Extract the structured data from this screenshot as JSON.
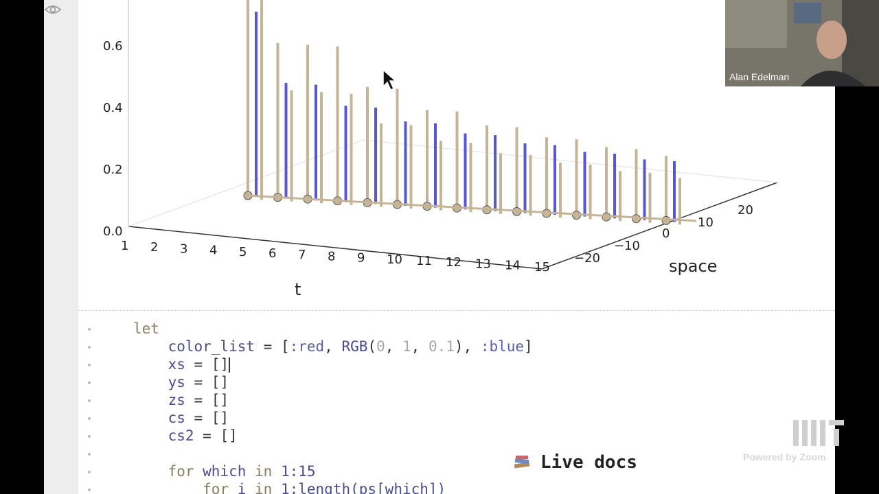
{
  "video": {
    "participant_name": "Alan Edelman"
  },
  "branding": {
    "zoom_text": "Powered by Zoom",
    "logo_text": "MIT"
  },
  "plot": {
    "z_ticks": [
      "0.0",
      "0.2",
      "0.4",
      "0.6"
    ],
    "t_ticks": [
      "1",
      "2",
      "3",
      "4",
      "5",
      "6",
      "7",
      "8",
      "9",
      "10",
      "11",
      "12",
      "13",
      "14",
      "15"
    ],
    "space_ticks": [
      "−20",
      "−10",
      "0",
      "10",
      "20"
    ],
    "t_label": "t",
    "space_label": "space"
  },
  "chart_data": {
    "type": "3d-stem",
    "xlabel": "t",
    "ylabel": "space",
    "zlim": [
      0,
      0.7
    ],
    "series": [
      {
        "color": "#c5b496",
        "values": [
          1.0,
          0.5,
          0.5,
          0.5,
          0.375,
          0.375,
          0.3125,
          0.3125,
          0.2734,
          0.2734,
          0.2461,
          0.2461,
          0.2256,
          0.2256,
          0.2095
        ]
      },
      {
        "color": "#5555dd",
        "values": [
          0.6,
          0.375,
          0.375,
          0.3125,
          0.3125,
          0.2734,
          0.2734,
          0.2461,
          0.2461,
          0.2256,
          0.2256,
          0.2095,
          0.2095,
          0.1964,
          0.1964
        ]
      }
    ]
  },
  "code": {
    "lines": [
      [
        {
          "c": "kw",
          "t": "let"
        }
      ],
      [
        {
          "c": "",
          "t": "    color_list "
        },
        {
          "c": "punct",
          "t": "= ["
        },
        {
          "c": "sym",
          "t": ":red"
        },
        {
          "c": "punct",
          "t": ", "
        },
        {
          "c": "",
          "t": "RGB"
        },
        {
          "c": "punct",
          "t": "("
        },
        {
          "c": "num",
          "t": "0"
        },
        {
          "c": "punct",
          "t": ", "
        },
        {
          "c": "num",
          "t": "1"
        },
        {
          "c": "punct",
          "t": ", "
        },
        {
          "c": "num",
          "t": "0.1"
        },
        {
          "c": "punct",
          "t": "), "
        },
        {
          "c": "sym",
          "t": ":blue"
        },
        {
          "c": "punct",
          "t": "]"
        }
      ],
      [
        {
          "c": "",
          "t": "    xs "
        },
        {
          "c": "punct",
          "t": "= []"
        },
        {
          "c": "cursor",
          "t": ""
        }
      ],
      [
        {
          "c": "",
          "t": "    ys "
        },
        {
          "c": "punct",
          "t": "= []"
        }
      ],
      [
        {
          "c": "",
          "t": "    zs "
        },
        {
          "c": "punct",
          "t": "= []"
        }
      ],
      [
        {
          "c": "",
          "t": "    cs "
        },
        {
          "c": "punct",
          "t": "= []"
        }
      ],
      [
        {
          "c": "",
          "t": "    cs2 "
        },
        {
          "c": "punct",
          "t": "= []"
        }
      ],
      [
        {
          "c": "",
          "t": ""
        }
      ],
      [
        {
          "c": "kw",
          "t": "    for "
        },
        {
          "c": "",
          "t": "which "
        },
        {
          "c": "kw",
          "t": "in "
        },
        {
          "c": "",
          "t": "1:15"
        }
      ],
      [
        {
          "c": "kw",
          "t": "        for "
        },
        {
          "c": "",
          "t": "i "
        },
        {
          "c": "kw",
          "t": "in "
        },
        {
          "c": "",
          "t": "1:length(ps[which])"
        }
      ]
    ]
  },
  "live_docs": {
    "label": "Live docs"
  },
  "close_button": {
    "label": "×"
  }
}
